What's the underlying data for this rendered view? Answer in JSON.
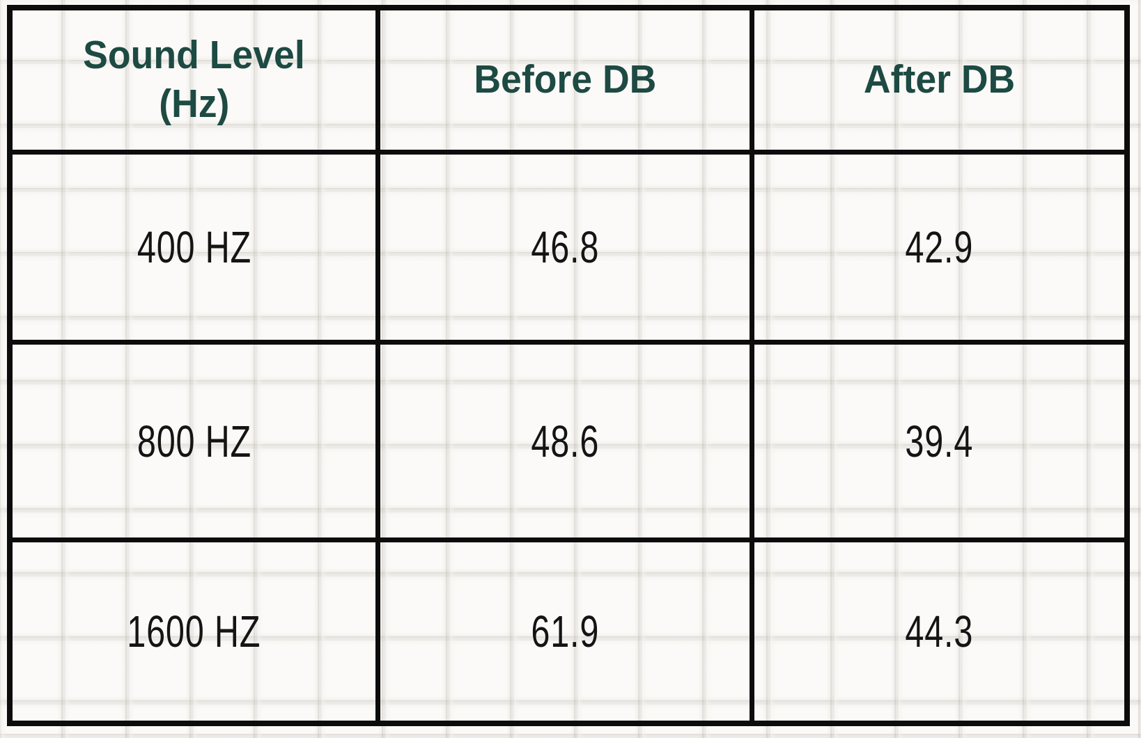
{
  "colors": {
    "header_text": "#1d4a42",
    "body_text": "#141414",
    "table_border": "#0c0c0c",
    "background_tile": "#fbfaf8",
    "tile_grout": "#ddd9d3"
  },
  "table": {
    "headers": [
      {
        "label": "Sound Level (Hz)",
        "line1": "Sound Level",
        "line2": "(Hz)"
      },
      {
        "label": "Before DB"
      },
      {
        "label": "After DB"
      }
    ],
    "rows": [
      {
        "freq": "400 HZ",
        "before": "46.8",
        "after": "42.9"
      },
      {
        "freq": "800 HZ",
        "before": "48.6",
        "after": "39.4"
      },
      {
        "freq": "1600 HZ",
        "before": "61.9",
        "after": "44.3"
      }
    ]
  },
  "chart_data": {
    "type": "table",
    "columns": [
      "Sound Level (Hz)",
      "Before DB",
      "After DB"
    ],
    "rows": [
      [
        "400 HZ",
        46.8,
        42.9
      ],
      [
        "800 HZ",
        48.6,
        39.4
      ],
      [
        "1600 HZ",
        61.9,
        44.3
      ]
    ]
  }
}
